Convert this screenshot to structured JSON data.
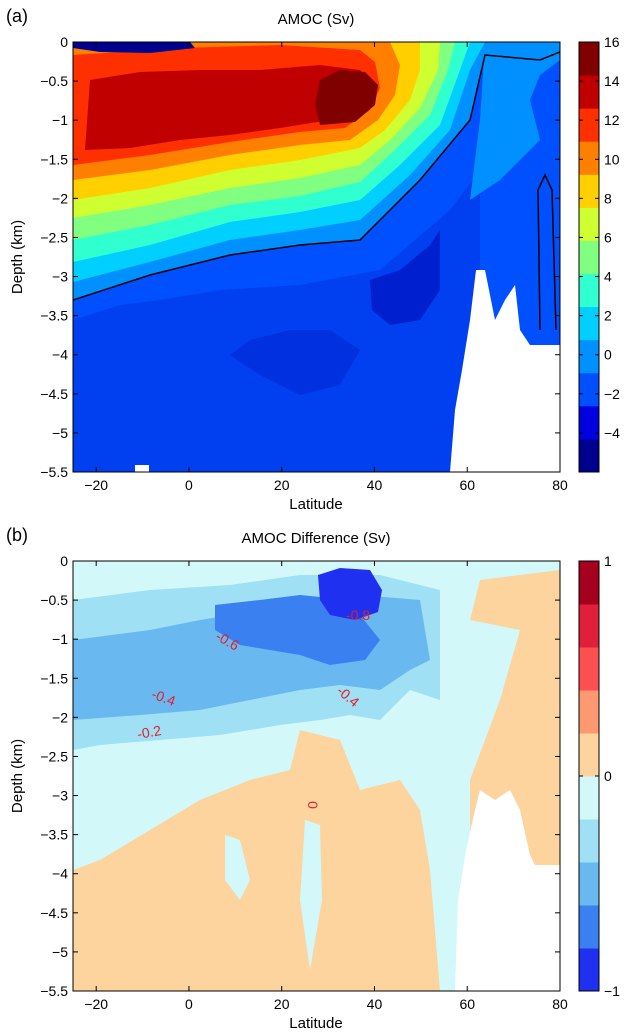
{
  "chart_data": [
    {
      "type": "heatmap",
      "panel_label": "(a)",
      "title": "AMOC (Sv)",
      "xlabel": "Latitude",
      "ylabel": "Depth (km)",
      "xlim": [
        -25,
        80
      ],
      "ylim": [
        -5.5,
        0
      ],
      "xticks": [
        -20,
        0,
        20,
        40,
        60,
        80
      ],
      "yticks": [
        0,
        -0.5,
        -1,
        -1.5,
        -2,
        -2.5,
        -3,
        -3.5,
        -4,
        -4.5,
        -5,
        -5.5
      ],
      "colorbar": {
        "range": [
          -6,
          16
        ],
        "ticks": [
          16,
          14,
          12,
          10,
          8,
          6,
          4,
          2,
          0,
          -2,
          -4
        ],
        "colormap": "jet"
      },
      "levels": [
        -6,
        -4,
        -2,
        0,
        2,
        4,
        6,
        8,
        10,
        12,
        14,
        16
      ],
      "zero_contour": true,
      "colors": [
        "#00008f",
        "#0000e0",
        "#0050ff",
        "#0090ff",
        "#00cfff",
        "#30ffcf",
        "#80ff80",
        "#cfff30",
        "#ffcf00",
        "#ff8000",
        "#ff3000",
        "#c00000",
        "#800000"
      ]
    },
    {
      "type": "heatmap",
      "panel_label": "(b)",
      "title": "AMOC Difference (Sv)",
      "xlabel": "Latitude",
      "ylabel": "Depth (km)",
      "xlim": [
        -25,
        80
      ],
      "ylim": [
        -5.5,
        0
      ],
      "xticks": [
        -20,
        0,
        20,
        40,
        60,
        80
      ],
      "yticks": [
        0,
        -0.5,
        -1,
        -1.5,
        -2,
        -2.5,
        -3,
        -3.5,
        -4,
        -4.5,
        -5,
        -5.5
      ],
      "colorbar": {
        "range": [
          -1,
          1
        ],
        "ticks": [
          1,
          0,
          -1
        ],
        "levels": [
          -1,
          -0.8,
          -0.6,
          -0.4,
          -0.2,
          0,
          0.2,
          0.4,
          0.6,
          0.8,
          1
        ]
      },
      "contour_labels": [
        "-0.8",
        "-0.6",
        "-0.4",
        "-0.4",
        "-0.2",
        "0"
      ],
      "colors": [
        "#2030f0",
        "#3a80f0",
        "#6ab8f0",
        "#9fe0f5",
        "#d2f8fa",
        "#fdd39e",
        "#fd9870",
        "#fc5050",
        "#e0203a",
        "#a5001e"
      ]
    }
  ]
}
